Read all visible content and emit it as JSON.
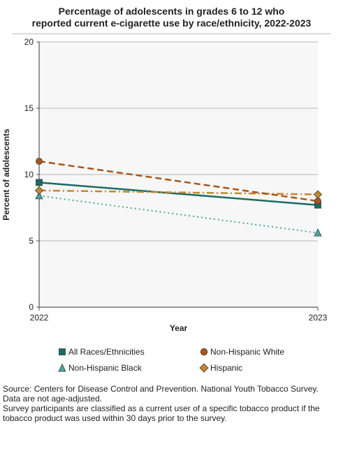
{
  "chart_title_line1": "Percentage of adolescents in grades 6 to 12 who",
  "chart_title_line2": "reported current e-cigarette use by race/ethnicity, 2022-2023",
  "chart_data": {
    "type": "line",
    "title": "Percentage of adolescents in grades 6 to 12 who reported current e-cigarette use by race/ethnicity, 2022-2023",
    "xlabel": "Year",
    "ylabel": "Percent of adolescents",
    "x": [
      "2022",
      "2023"
    ],
    "ylim": [
      0,
      20
    ],
    "yticks": [
      0,
      5,
      10,
      15,
      20
    ],
    "grid": true,
    "legend_position": "bottom",
    "series": [
      {
        "name": "All Races/Ethnicities",
        "values": [
          9.4,
          7.7
        ],
        "color": "#1a6b65",
        "marker": "square",
        "dash": "solid"
      },
      {
        "name": "Non-Hispanic White",
        "values": [
          11.0,
          8.0
        ],
        "color": "#a8561c",
        "marker": "circle",
        "dash": "dashed"
      },
      {
        "name": "Non-Hispanic Black",
        "values": [
          8.4,
          5.6
        ],
        "color": "#4aa79b",
        "marker": "triangle",
        "dash": "dotted"
      },
      {
        "name": "Hispanic",
        "values": [
          8.8,
          8.5
        ],
        "color": "#c8862c",
        "marker": "diamond",
        "dash": "dashdot"
      }
    ]
  },
  "footnotes": {
    "source": "Source: Centers for Disease Control and Prevention. National Youth Tobacco Survey.",
    "age_note": "Data are not age-adjusted.",
    "definition": "Survey participants are classified as a current user of a specific tobacco product if the tobacco product was used within 30 days prior to the survey."
  }
}
